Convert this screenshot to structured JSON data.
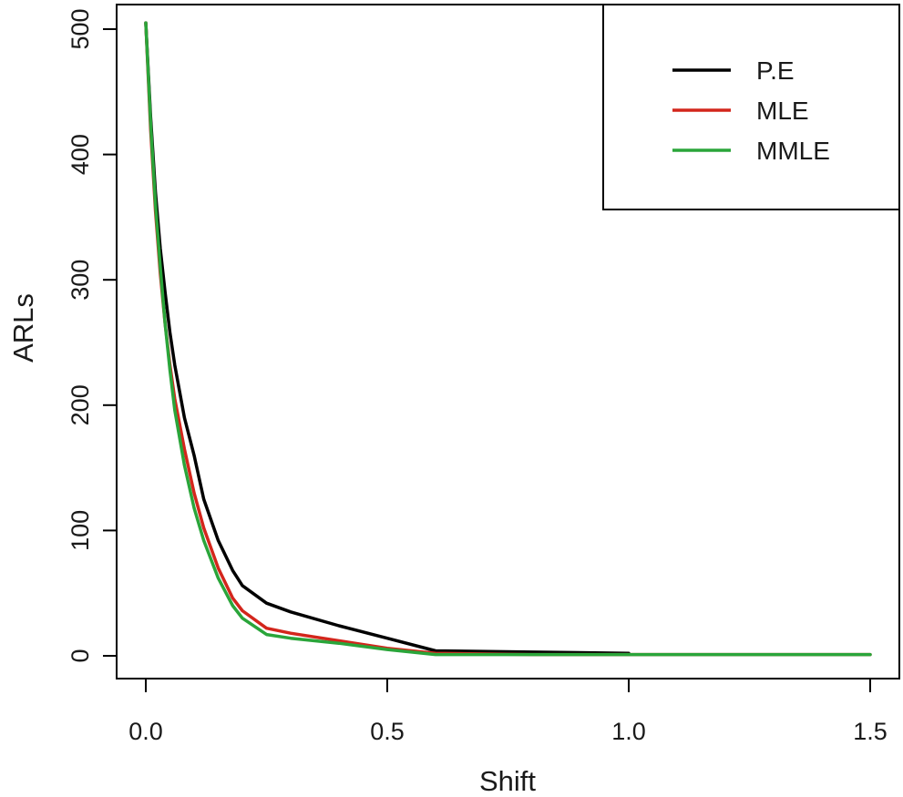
{
  "chart_data": {
    "type": "line",
    "title": "",
    "xlabel": "Shift",
    "ylabel": "ARLs",
    "xlim": [
      0,
      1.5
    ],
    "ylim": [
      0,
      500
    ],
    "x_ticks": [
      "0.0",
      "0.5",
      "1.0",
      "1.5"
    ],
    "y_ticks": [
      "0",
      "100",
      "200",
      "300",
      "400",
      "500"
    ],
    "grid": false,
    "legend_position": "top-right",
    "series": [
      {
        "name": "P.E",
        "color": "#000000",
        "x": [
          0,
          0.01,
          0.02,
          0.03,
          0.04,
          0.05,
          0.06,
          0.08,
          0.1,
          0.12,
          0.15,
          0.18,
          0.2,
          0.25,
          0.3,
          0.4,
          0.5,
          0.6,
          0.8,
          1.0
        ],
        "y": [
          505,
          430,
          370,
          325,
          290,
          258,
          232,
          190,
          160,
          125,
          92,
          68,
          56,
          42,
          35,
          24,
          14,
          4,
          3,
          2
        ]
      },
      {
        "name": "MLE",
        "color": "#d3261c",
        "x": [
          0,
          0.01,
          0.02,
          0.03,
          0.04,
          0.05,
          0.06,
          0.08,
          0.1,
          0.12,
          0.15,
          0.18,
          0.2,
          0.25,
          0.3,
          0.4,
          0.5,
          0.6,
          0.8,
          1.0,
          1.2,
          1.5
        ],
        "y": [
          505,
          420,
          355,
          305,
          265,
          232,
          205,
          165,
          130,
          102,
          70,
          46,
          36,
          22,
          18,
          12,
          6,
          2,
          1,
          1,
          1,
          1
        ]
      },
      {
        "name": "MMLE",
        "color": "#2aa53a",
        "x": [
          0,
          0.01,
          0.02,
          0.03,
          0.04,
          0.05,
          0.06,
          0.08,
          0.1,
          0.12,
          0.15,
          0.18,
          0.2,
          0.25,
          0.3,
          0.4,
          0.5,
          0.6,
          0.8,
          1.0,
          1.2,
          1.5
        ],
        "y": [
          505,
          425,
          360,
          310,
          265,
          228,
          196,
          152,
          118,
          92,
          62,
          40,
          30,
          17,
          14,
          10,
          5,
          1,
          1,
          1,
          1,
          1
        ]
      }
    ]
  }
}
